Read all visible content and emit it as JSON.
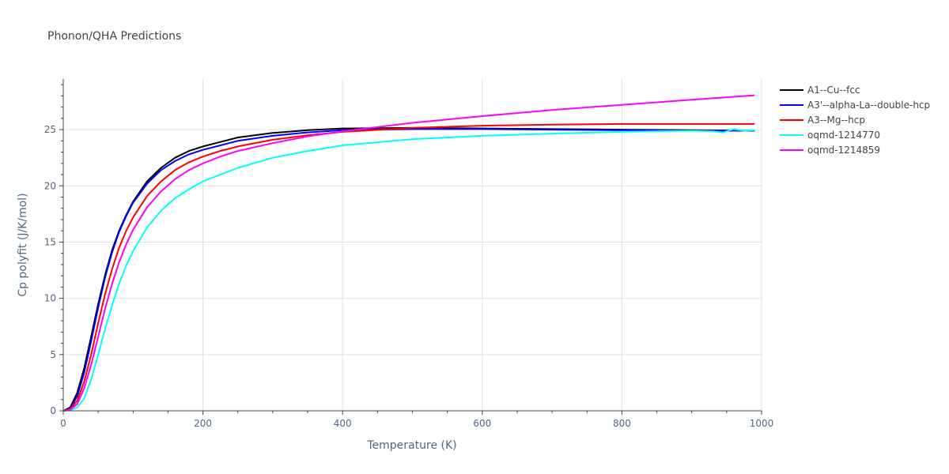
{
  "chart_data": {
    "type": "line",
    "title": "Phonon/QHA Predictions",
    "xlabel": "Temperature (K)",
    "ylabel": "Cp polyfit (J/K/mol)",
    "xlim": [
      0,
      1000
    ],
    "ylim": [
      0,
      29.5
    ],
    "xticks": [
      0,
      200,
      400,
      600,
      800,
      1000
    ],
    "yticks": [
      0,
      5,
      10,
      15,
      20,
      25
    ],
    "grid": true,
    "legend_position": "top-right outside",
    "series": [
      {
        "name": "A1--Cu--fcc",
        "color": "#000000",
        "x": [
          0,
          10,
          20,
          30,
          40,
          50,
          60,
          70,
          80,
          90,
          100,
          120,
          140,
          160,
          180,
          200,
          225,
          250,
          300,
          350,
          400,
          500,
          600,
          700,
          800,
          900,
          990
        ],
        "y": [
          0,
          0.3,
          1.6,
          3.8,
          6.6,
          9.5,
          12.1,
          14.3,
          16.0,
          17.4,
          18.6,
          20.4,
          21.6,
          22.5,
          23.1,
          23.5,
          23.9,
          24.3,
          24.7,
          24.95,
          25.1,
          25.15,
          25.1,
          25.05,
          25.0,
          24.95,
          24.9
        ]
      },
      {
        "name": "A3'--alpha-La--double-hcp",
        "color": "#0000ff",
        "x": [
          0,
          10,
          20,
          30,
          40,
          50,
          60,
          70,
          80,
          90,
          100,
          120,
          140,
          160,
          180,
          200,
          225,
          250,
          300,
          350,
          400,
          500,
          600,
          700,
          800,
          900,
          990
        ],
        "y": [
          0,
          0.2,
          1.3,
          3.4,
          6.2,
          9.2,
          11.9,
          14.1,
          15.9,
          17.3,
          18.5,
          20.2,
          21.4,
          22.2,
          22.8,
          23.2,
          23.6,
          24.0,
          24.45,
          24.75,
          24.95,
          25.05,
          25.05,
          25.0,
          24.95,
          24.9,
          24.9
        ]
      },
      {
        "name": "A3--Mg--hcp",
        "color": "#ff0000",
        "x": [
          0,
          10,
          20,
          30,
          40,
          50,
          60,
          70,
          80,
          90,
          100,
          120,
          140,
          160,
          180,
          200,
          225,
          250,
          300,
          350,
          400,
          500,
          600,
          700,
          800,
          900,
          990
        ],
        "y": [
          0,
          0.15,
          0.9,
          2.6,
          5.0,
          7.8,
          10.4,
          12.6,
          14.5,
          16.0,
          17.2,
          19.1,
          20.4,
          21.4,
          22.1,
          22.6,
          23.1,
          23.5,
          24.1,
          24.5,
          24.8,
          25.15,
          25.35,
          25.45,
          25.5,
          25.5,
          25.5
        ]
      },
      {
        "name": "oqmd-1214770",
        "color": "#00ffff",
        "x": [
          0,
          10,
          20,
          30,
          40,
          50,
          60,
          70,
          80,
          90,
          100,
          120,
          140,
          160,
          180,
          200,
          225,
          250,
          300,
          350,
          400,
          500,
          600,
          700,
          800,
          900,
          930,
          945,
          960,
          975,
          990
        ],
        "y": [
          0,
          0.05,
          0.3,
          1.1,
          2.8,
          5.0,
          7.3,
          9.4,
          11.3,
          12.9,
          14.2,
          16.3,
          17.8,
          18.9,
          19.7,
          20.4,
          21.0,
          21.6,
          22.5,
          23.1,
          23.6,
          24.15,
          24.45,
          24.65,
          24.8,
          24.9,
          24.85,
          24.75,
          25.05,
          24.9,
          24.95
        ]
      },
      {
        "name": "oqmd-1214859",
        "color": "#ff00ff",
        "x": [
          0,
          10,
          20,
          30,
          40,
          50,
          60,
          70,
          80,
          90,
          100,
          120,
          140,
          160,
          180,
          200,
          225,
          250,
          300,
          350,
          400,
          500,
          600,
          700,
          800,
          900,
          990
        ],
        "y": [
          0,
          0.1,
          0.6,
          2.0,
          4.1,
          6.6,
          9.1,
          11.3,
          13.2,
          14.8,
          16.1,
          18.1,
          19.5,
          20.6,
          21.4,
          22.0,
          22.6,
          23.1,
          23.8,
          24.4,
          24.85,
          25.6,
          26.2,
          26.75,
          27.2,
          27.65,
          28.05
        ]
      }
    ]
  }
}
